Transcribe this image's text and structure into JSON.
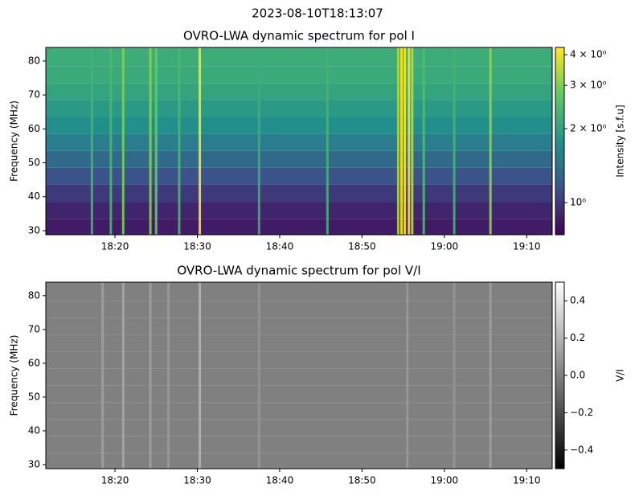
{
  "title": "2023-08-10T18:13:07",
  "chart_data": [
    {
      "type": "heatmap",
      "title": "OVRO-LWA dynamic spectrum for pol I",
      "ylabel": "Frequency (MHz)",
      "xlim": [
        1091.6,
        1153.1
      ],
      "xticks": [
        {
          "value": 1100,
          "label": "18:20"
        },
        {
          "value": 1110,
          "label": "18:30"
        },
        {
          "value": 1120,
          "label": "18:40"
        },
        {
          "value": 1130,
          "label": "18:50"
        },
        {
          "value": 1140,
          "label": "19:00"
        },
        {
          "value": 1150,
          "label": "19:10"
        }
      ],
      "ylim": [
        28.8,
        84
      ],
      "yticks": [
        30,
        40,
        50,
        60,
        70,
        80
      ],
      "colorbar": {
        "label": "Intensity [s.f.u]",
        "colormap": "viridis",
        "log": true,
        "lim": [
          0.74,
          4.28
        ],
        "ticks": [
          {
            "value": 1,
            "label": "10⁰"
          },
          {
            "value": 2,
            "label": "2 × 10⁰"
          },
          {
            "value": 3,
            "label": "3 × 10⁰"
          },
          {
            "value": 4,
            "label": "4 × 10⁰"
          }
        ]
      },
      "background": {
        "y": [
          31,
          36,
          41,
          46,
          51,
          56,
          61,
          66,
          71,
          76,
          81
        ],
        "values": [
          0.85,
          0.9,
          1.0,
          1.15,
          1.35,
          1.55,
          1.75,
          1.9,
          2.05,
          2.15,
          2.2
        ]
      },
      "bursts": {
        "x": [
          1097.2,
          1099.5,
          1101.0,
          1104.3,
          1105.0,
          1107.8,
          1110.3,
          1117.5,
          1125.8,
          1134.4,
          1134.8,
          1135.2,
          1135.7,
          1136.1,
          1137.5,
          1141.2,
          1145.6
        ],
        "values": [
          2.3,
          2.4,
          3.0,
          3.1,
          2.8,
          2.4,
          4.2,
          2.2,
          2.3,
          3.4,
          4.3,
          4.3,
          4.2,
          3.6,
          2.5,
          2.3,
          3.2
        ]
      }
    },
    {
      "type": "heatmap",
      "title": "OVRO-LWA dynamic spectrum for pol V/I",
      "ylabel": "Frequency (MHz)",
      "xlim": [
        1091.6,
        1153.1
      ],
      "xticks": [
        {
          "value": 1100,
          "label": "18:20"
        },
        {
          "value": 1110,
          "label": "18:30"
        },
        {
          "value": 1120,
          "label": "18:40"
        },
        {
          "value": 1130,
          "label": "18:50"
        },
        {
          "value": 1140,
          "label": "19:00"
        },
        {
          "value": 1150,
          "label": "19:10"
        }
      ],
      "ylim": [
        28.8,
        84
      ],
      "yticks": [
        30,
        40,
        50,
        60,
        70,
        80
      ],
      "colorbar": {
        "label": "V/I",
        "colormap": "greys",
        "log": false,
        "lim": [
          -0.5,
          0.5
        ],
        "ticks": [
          {
            "value": -0.4,
            "label": "−0.4"
          },
          {
            "value": -0.2,
            "label": "−0.2"
          },
          {
            "value": 0,
            "label": "0.0"
          },
          0.2,
          0.4
        ]
      },
      "background": {
        "y": [
          31,
          36,
          41,
          46,
          51,
          56,
          61,
          66,
          71,
          76,
          81
        ],
        "values": [
          0.0,
          0.0,
          0.0,
          0.0,
          0.0,
          0.0,
          0.0,
          0.0,
          0.0,
          0.0,
          0.0
        ]
      },
      "bursts": {
        "x": [
          1098.5,
          1101.0,
          1104.3,
          1106.5,
          1110.3,
          1117.5,
          1135.5,
          1141.2,
          1145.6
        ],
        "values": [
          0.12,
          0.15,
          0.12,
          0.1,
          0.2,
          0.08,
          0.1,
          0.08,
          0.12
        ]
      }
    }
  ]
}
